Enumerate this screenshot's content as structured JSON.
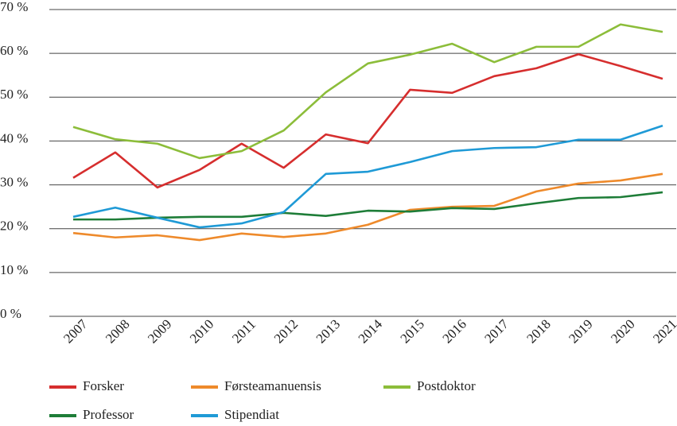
{
  "chart_data": {
    "type": "line",
    "categories": [
      "2007",
      "2008",
      "2009",
      "2010",
      "2011",
      "2012",
      "2013",
      "2014",
      "2015",
      "2016",
      "2017",
      "2018",
      "2019",
      "2020",
      "2021"
    ],
    "series": [
      {
        "name": "Forsker",
        "color": "#d62e2e",
        "values": [
          31.6,
          37.4,
          29.4,
          33.4,
          39.4,
          33.9,
          41.5,
          39.5,
          51.7,
          51.0,
          54.8,
          56.6,
          59.8,
          57.1,
          54.2
        ]
      },
      {
        "name": "Førsteamanuensis",
        "color": "#ee8a2b",
        "values": [
          19.0,
          18.0,
          18.5,
          17.4,
          18.9,
          18.1,
          18.9,
          20.9,
          24.3,
          25.0,
          25.2,
          28.5,
          30.3,
          31.0,
          32.5
        ]
      },
      {
        "name": "Postdoktor",
        "color": "#8cbd3a",
        "values": [
          43.2,
          40.4,
          39.4,
          36.1,
          37.7,
          42.4,
          51.1,
          57.7,
          59.7,
          62.2,
          58.0,
          61.5,
          61.5,
          66.6,
          64.9
        ]
      },
      {
        "name": "Professor",
        "color": "#1e7d38",
        "values": [
          22.1,
          22.1,
          22.5,
          22.7,
          22.7,
          23.6,
          22.9,
          24.1,
          23.9,
          24.7,
          24.5,
          25.8,
          27.0,
          27.2,
          28.3
        ]
      },
      {
        "name": "Stipendiat",
        "color": "#1f9ad6",
        "values": [
          22.7,
          24.8,
          22.5,
          20.3,
          21.2,
          23.8,
          32.5,
          33.0,
          35.2,
          37.7,
          38.4,
          38.6,
          40.3,
          40.3,
          43.5
        ]
      }
    ],
    "ylim": [
      0,
      70
    ],
    "yticks": [
      {
        "value": 0,
        "label": "0 %"
      },
      {
        "value": 10,
        "label": "10 %"
      },
      {
        "value": 20,
        "label": "20 %"
      },
      {
        "value": 30,
        "label": "30 %"
      },
      {
        "value": 40,
        "label": "40 %"
      },
      {
        "value": 50,
        "label": "50 %"
      },
      {
        "value": 60,
        "label": "60 %"
      },
      {
        "value": 70,
        "label": "70 %"
      }
    ],
    "grid": true
  }
}
